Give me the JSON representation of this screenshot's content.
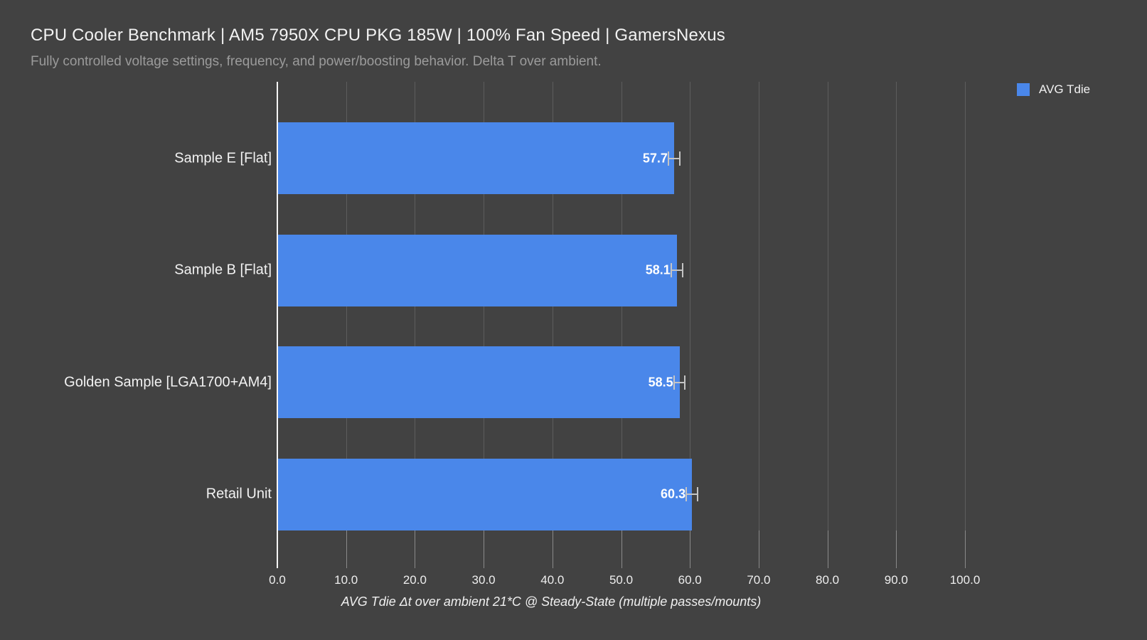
{
  "header": {
    "title": "CPU Cooler Benchmark | AM5 7950X CPU PKG 185W | 100% Fan Speed | GamersNexus",
    "subtitle": "Fully controlled voltage settings, frequency, and power/boosting behavior. Delta T over ambient."
  },
  "legend": {
    "label": "AVG Tdie"
  },
  "colors": {
    "background": "#424242",
    "bar": "#4a87ea",
    "gridline": "#5d5d5d",
    "zero_axis": "#f5f5f5",
    "error_bar": "#c4c4c4",
    "title_text": "#f2f2f2",
    "subtitle_text": "#9b9b9b"
  },
  "chart_data": {
    "type": "bar",
    "orientation": "horizontal",
    "title": "CPU Cooler Benchmark | AM5 7950X CPU PKG 185W | 100% Fan Speed | GamersNexus",
    "subtitle": "Fully controlled voltage settings, frequency, and power/boosting behavior. Delta T over ambient.",
    "series_name": "AVG Tdie",
    "categories": [
      "Sample E [Flat]",
      "Sample B [Flat]",
      "Golden Sample [LGA1700+AM4]",
      "Retail Unit"
    ],
    "values": [
      57.7,
      58.1,
      58.5,
      60.3
    ],
    "value_labels": [
      "57.7",
      "58.1",
      "58.5",
      "60.3"
    ],
    "error_plus_minus": [
      0.8,
      0.8,
      0.8,
      0.8
    ],
    "xlabel": "AVG Tdie Δt over ambient 21*C @ Steady-State (multiple passes/mounts)",
    "ylabel": "",
    "xlim": [
      0,
      100
    ],
    "xticks": [
      0,
      10,
      20,
      30,
      40,
      50,
      60,
      70,
      80,
      90,
      100
    ],
    "xtick_labels": [
      "0.0",
      "10.0",
      "20.0",
      "30.0",
      "40.0",
      "50.0",
      "60.0",
      "70.0",
      "80.0",
      "90.0",
      "100.0"
    ],
    "grid": "vertical",
    "legend_position": "top-right",
    "bar_color_hex": "#4a87ea"
  }
}
